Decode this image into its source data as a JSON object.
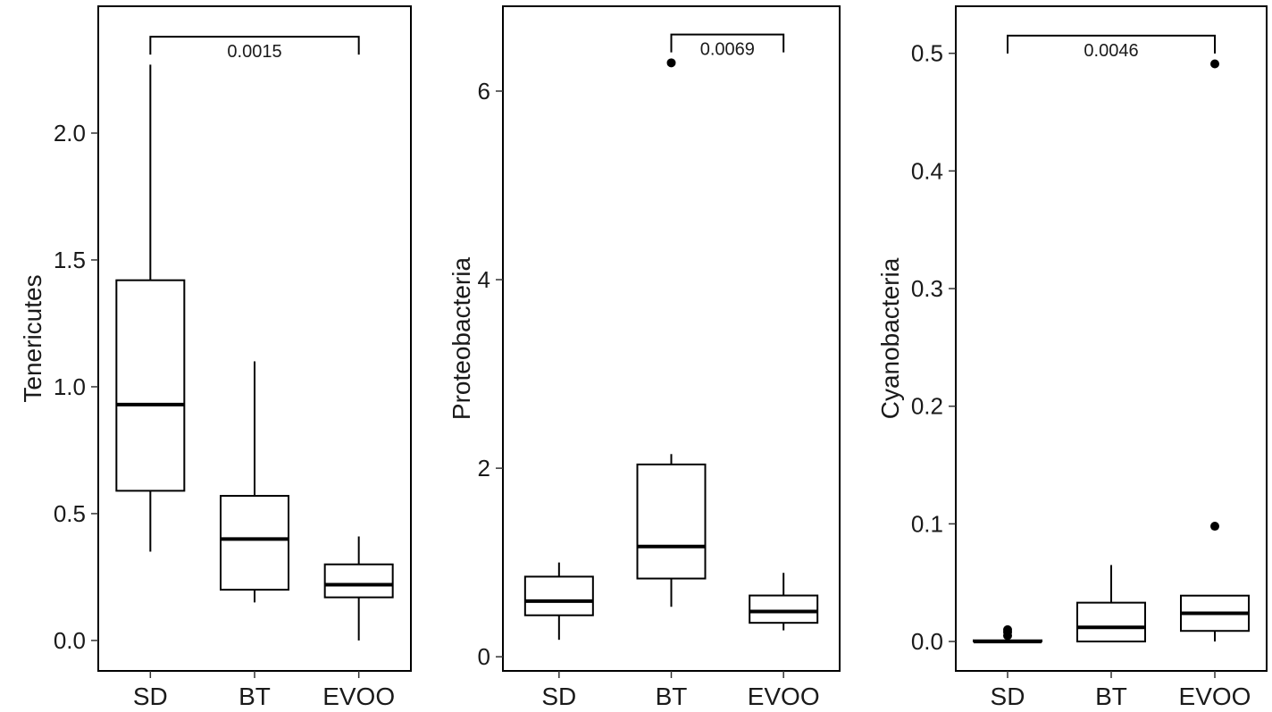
{
  "chart_data": [
    {
      "type": "box",
      "ylabel": "Tenericutes",
      "categories": [
        "SD",
        "BT",
        "EVOO"
      ],
      "ylim": [
        -0.12,
        2.5
      ],
      "yticks": [
        0.0,
        0.5,
        1.0,
        1.5,
        2.0
      ],
      "ytick_labels": [
        "0.0",
        "0.5",
        "1.0",
        "1.5",
        "2.0"
      ],
      "boxes": [
        {
          "whisker_low": 0.35,
          "q1": 0.59,
          "median": 0.93,
          "q3": 1.42,
          "whisker_high": 2.27,
          "outliers": []
        },
        {
          "whisker_low": 0.15,
          "q1": 0.2,
          "median": 0.4,
          "q3": 0.57,
          "whisker_high": 1.1,
          "outliers": []
        },
        {
          "whisker_low": 0.0,
          "q1": 0.17,
          "median": 0.22,
          "q3": 0.3,
          "whisker_high": 0.41,
          "outliers": []
        }
      ],
      "comparison": {
        "from": "SD",
        "to": "EVOO",
        "y": 2.38,
        "label": "0.0015"
      },
      "grid": false
    },
    {
      "type": "box",
      "ylabel": "Proteobacteria",
      "categories": [
        "SD",
        "BT",
        "EVOO"
      ],
      "ylim": [
        -0.15,
        6.9
      ],
      "yticks": [
        0,
        2,
        4,
        6
      ],
      "ytick_labels": [
        "0",
        "2",
        "4",
        "6"
      ],
      "boxes": [
        {
          "whisker_low": 0.18,
          "q1": 0.44,
          "median": 0.59,
          "q3": 0.85,
          "whisker_high": 1.0,
          "outliers": []
        },
        {
          "whisker_low": 0.53,
          "q1": 0.83,
          "median": 1.17,
          "q3": 2.04,
          "whisker_high": 2.15,
          "outliers": [
            6.3
          ]
        },
        {
          "whisker_low": 0.28,
          "q1": 0.36,
          "median": 0.48,
          "q3": 0.65,
          "whisker_high": 0.89,
          "outliers": []
        }
      ],
      "comparison": {
        "from": "BT",
        "to": "EVOO",
        "y": 6.6,
        "label": "0.0069"
      },
      "grid": false
    },
    {
      "type": "box",
      "ylabel": "Cyanobacteria",
      "categories": [
        "SD",
        "BT",
        "EVOO"
      ],
      "ylim": [
        -0.025,
        0.54
      ],
      "yticks": [
        0.0,
        0.1,
        0.2,
        0.3,
        0.4,
        0.5
      ],
      "ytick_labels": [
        "0.0",
        "0.1",
        "0.2",
        "0.3",
        "0.4",
        "0.5"
      ],
      "boxes": [
        {
          "whisker_low": 0.0,
          "q1": 0.0,
          "median": 0.0,
          "q3": 0.001,
          "whisker_high": 0.001,
          "outliers": [
            0.005,
            0.008,
            0.01
          ]
        },
        {
          "whisker_low": 0.0,
          "q1": 0.0,
          "median": 0.012,
          "q3": 0.033,
          "whisker_high": 0.065,
          "outliers": []
        },
        {
          "whisker_low": 0.0,
          "q1": 0.009,
          "median": 0.024,
          "q3": 0.039,
          "whisker_high": 0.039,
          "outliers": [
            0.098,
            0.491
          ]
        }
      ],
      "comparison": {
        "from": "SD",
        "to": "EVOO",
        "y": 0.515,
        "label": "0.0046"
      },
      "grid": false
    }
  ]
}
